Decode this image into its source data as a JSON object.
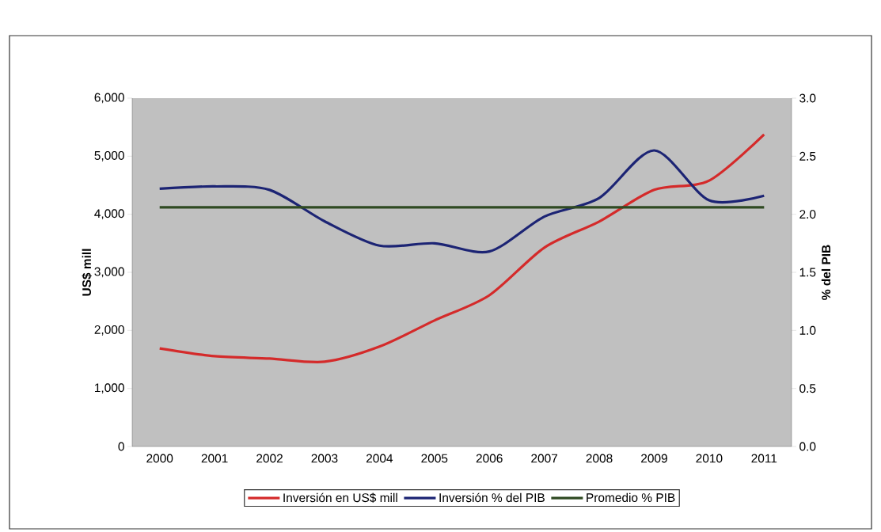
{
  "chart_data": {
    "type": "line",
    "categories": [
      "2000",
      "2001",
      "2002",
      "2003",
      "2004",
      "2005",
      "2006",
      "2007",
      "2008",
      "2009",
      "2010",
      "2011"
    ],
    "series": [
      {
        "name": "Inversión en US$ mill",
        "color": "#d42a2a",
        "values": [
          1690,
          1555,
          1515,
          1460,
          1720,
          2170,
          2605,
          3425,
          3875,
          4420,
          4580,
          5375
        ]
      },
      {
        "name": "Inversión % del PIB",
        "color": "#1c2474",
        "axis": "y2",
        "values": [
          2.22,
          2.24,
          2.21,
          1.94,
          1.73,
          1.75,
          1.68,
          1.98,
          2.14,
          2.55,
          2.12,
          2.16
        ]
      },
      {
        "name": "Promedio % PIB",
        "color": "#2f4a22",
        "axis": "y2",
        "values": [
          2.06,
          2.06,
          2.06,
          2.06,
          2.06,
          2.06,
          2.06,
          2.06,
          2.06,
          2.06,
          2.06,
          2.06
        ]
      }
    ],
    "ylabel": "US$ mill",
    "y2label": "% del PIB",
    "ylim": [
      0,
      6000
    ],
    "yticks": [
      0,
      {
        "value": 1000,
        "label": "1,000"
      },
      {
        "value": 2000,
        "label": "2,000"
      },
      {
        "value": 3000,
        "label": "3,000"
      },
      {
        "value": 4000,
        "label": "4,000"
      },
      {
        "value": 5000,
        "label": "5,000"
      },
      {
        "value": 6000,
        "label": "6,000"
      }
    ],
    "y2lim": [
      0,
      3
    ],
    "y2ticks": [
      {
        "value": 0,
        "label": "0.0"
      },
      {
        "value": 0.5,
        "label": "0.5"
      },
      {
        "value": 1,
        "label": "1.0"
      },
      {
        "value": 1.5,
        "label": "1.5"
      },
      {
        "value": 2,
        "label": "2.0"
      },
      {
        "value": 2.5,
        "label": "2.5"
      },
      {
        "value": 3,
        "label": "3.0"
      }
    ],
    "grid": false,
    "legend": "bottom",
    "marker": "none",
    "line_style": "solid"
  }
}
